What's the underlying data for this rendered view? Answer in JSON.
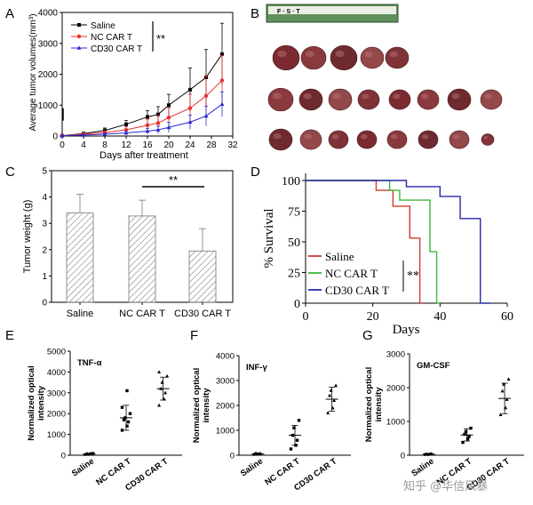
{
  "panel_letters": {
    "A": "A",
    "B": "B",
    "C": "C",
    "D": "D",
    "E": "E",
    "F": "F",
    "G": "G"
  },
  "ruler_text": "F · S · T",
  "watermark": "知乎 @华信风暴",
  "colors": {
    "saline": "#000000",
    "nc": "#e8312f",
    "cd30": "#2a2ad0",
    "km_saline": "#d23a2c",
    "km_nc": "#3cb83c",
    "km_cd30": "#2a2aa8",
    "bar_hatch": "#8a8a8a",
    "tumor": "#7a2a30"
  },
  "chart_data": [
    {
      "id": "A",
      "type": "line",
      "title": "",
      "xlabel": "Days after treatment",
      "ylabel": "Average tumor volumes(mm³)",
      "xlim": [
        0,
        32
      ],
      "ylim": [
        0,
        4000
      ],
      "x": [
        0,
        4,
        8,
        12,
        16,
        18,
        20,
        24,
        27,
        30
      ],
      "xticks": [
        "0",
        "4",
        "8",
        "12",
        "16",
        "20",
        "24",
        "28",
        "32"
      ],
      "yticks": [
        "0",
        "1000",
        "2000",
        "3000",
        "4000"
      ],
      "series": [
        {
          "name": "Saline",
          "marker": "square",
          "values": [
            10,
            80,
            180,
            380,
            620,
            700,
            1000,
            1500,
            1900,
            2650
          ],
          "err": [
            0,
            40,
            80,
            120,
            200,
            250,
            350,
            700,
            900,
            1000
          ]
        },
        {
          "name": "NC CAR T",
          "marker": "circle",
          "values": [
            10,
            60,
            110,
            200,
            350,
            420,
            600,
            900,
            1300,
            1800
          ],
          "err": [
            0,
            30,
            60,
            100,
            200,
            250,
            320,
            450,
            650,
            800
          ]
        },
        {
          "name": "CD30 CAR T",
          "marker": "triangle",
          "values": [
            10,
            30,
            60,
            100,
            160,
            200,
            280,
            450,
            650,
            1030
          ],
          "err": [
            0,
            20,
            40,
            60,
            90,
            120,
            160,
            230,
            320,
            400
          ]
        }
      ],
      "annotation": "**",
      "legend_position": "top-left"
    },
    {
      "id": "C",
      "type": "bar",
      "title": "",
      "xlabel": "",
      "ylabel": "Tumor weight (g)",
      "ylim": [
        0,
        5
      ],
      "yticks": [
        "0",
        "1",
        "2",
        "3",
        "4",
        "5"
      ],
      "categories": [
        "Saline",
        "NC CAR T",
        "CD30 CAR T"
      ],
      "values": [
        3.4,
        3.28,
        1.95
      ],
      "err": [
        0.7,
        0.6,
        0.85
      ],
      "annotation": "**",
      "annotation_between": [
        "NC CAR T",
        "CD30 CAR T"
      ]
    },
    {
      "id": "D",
      "type": "line",
      "title": "",
      "xlabel": "Days",
      "ylabel": "% Survival",
      "xlim": [
        0,
        60
      ],
      "ylim": [
        0,
        100
      ],
      "xticks": [
        "0",
        "20",
        "40",
        "60"
      ],
      "yticks": [
        "0",
        "25",
        "50",
        "75",
        "100"
      ],
      "series": [
        {
          "name": "Saline",
          "steps": [
            [
              0,
              100
            ],
            [
              21,
              100
            ],
            [
              21,
              92
            ],
            [
              26,
              92
            ],
            [
              26,
              79
            ],
            [
              31,
              79
            ],
            [
              31,
              53
            ],
            [
              34,
              53
            ],
            [
              34,
              0
            ],
            [
              35,
              0
            ]
          ]
        },
        {
          "name": "NC CAR T",
          "steps": [
            [
              0,
              100
            ],
            [
              25,
              100
            ],
            [
              25,
              92
            ],
            [
              28,
              92
            ],
            [
              28,
              84
            ],
            [
              37,
              84
            ],
            [
              37,
              42
            ],
            [
              39,
              42
            ],
            [
              39,
              0
            ],
            [
              40,
              0
            ]
          ]
        },
        {
          "name": "CD30 CAR T",
          "steps": [
            [
              0,
              100
            ],
            [
              30,
              100
            ],
            [
              30,
              95
            ],
            [
              40,
              95
            ],
            [
              40,
              87
            ],
            [
              46,
              87
            ],
            [
              46,
              69
            ],
            [
              52,
              69
            ],
            [
              52,
              0
            ],
            [
              55,
              0
            ]
          ]
        }
      ],
      "annotation": "**",
      "legend_position": "bottom-left"
    },
    {
      "id": "E",
      "type": "scatter",
      "title": "TNF-α",
      "xlabel": "",
      "ylabel": "Normalized optical intensity",
      "ylim": [
        0,
        5000
      ],
      "yticks": [
        "0",
        "1000",
        "2000",
        "3000",
        "4000",
        "5000"
      ],
      "categories": [
        "Saline",
        "NC CAR T",
        "CD30 CAR T"
      ],
      "points": [
        [
          30,
          60,
          80,
          70,
          40,
          90
        ],
        [
          1200,
          1400,
          1600,
          1700,
          1800,
          2000,
          2300,
          3100
        ],
        [
          2400,
          2700,
          3000,
          3200,
          3500,
          3800,
          4000
        ]
      ],
      "mean": [
        60,
        1800,
        3200
      ],
      "sd": [
        25,
        600,
        550
      ]
    },
    {
      "id": "F",
      "type": "scatter",
      "title": "INF-γ",
      "xlabel": "",
      "ylabel": "Normalized optical intensity",
      "ylim": [
        0,
        4000
      ],
      "yticks": [
        "0",
        "1000",
        "2000",
        "3000",
        "4000"
      ],
      "categories": [
        "Saline",
        "NC CAR T",
        "CD30 CAR T"
      ],
      "points": [
        [
          30,
          50,
          60,
          70,
          40
        ],
        [
          250,
          400,
          600,
          800,
          1100,
          1400
        ],
        [
          1700,
          1900,
          2200,
          2400,
          2600,
          2800
        ]
      ],
      "mean": [
        50,
        800,
        2250
      ],
      "sd": [
        20,
        400,
        480
      ]
    },
    {
      "id": "G",
      "type": "scatter",
      "title": "GM-CSF",
      "xlabel": "",
      "ylabel": "Normalized optical intensity",
      "ylim": [
        0,
        3000
      ],
      "yticks": [
        "0",
        "1000",
        "2000",
        "3000"
      ],
      "categories": [
        "Saline",
        "NC CAR T",
        "CD30 CAR T"
      ],
      "points": [
        [
          20,
          30,
          40,
          30,
          20
        ],
        [
          380,
          480,
          550,
          620,
          700,
          800
        ],
        [
          1200,
          1400,
          1650,
          1900,
          2100,
          2250
        ]
      ],
      "mean": [
        30,
        600,
        1680
      ],
      "sd": [
        10,
        180,
        450
      ]
    }
  ]
}
